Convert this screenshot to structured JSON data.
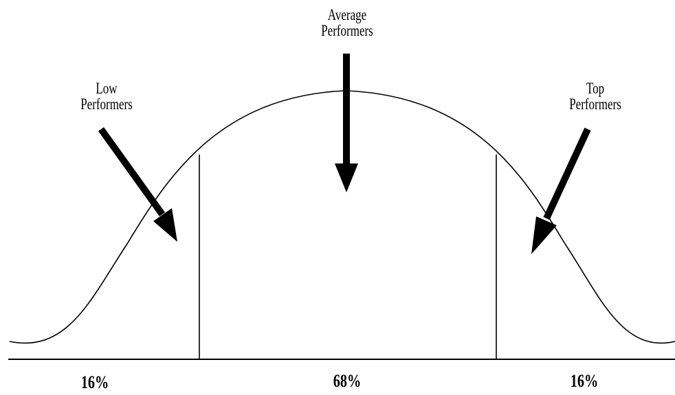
{
  "labels": {
    "low": [
      "Low",
      "Performers"
    ],
    "average": [
      "Average",
      "Performers"
    ],
    "top": [
      "Top",
      "Performers"
    ]
  },
  "percentages": {
    "left": "16%",
    "middle": "68%",
    "right": "16%"
  },
  "colors": {
    "line": "#000000",
    "background": "#ffffff"
  }
}
